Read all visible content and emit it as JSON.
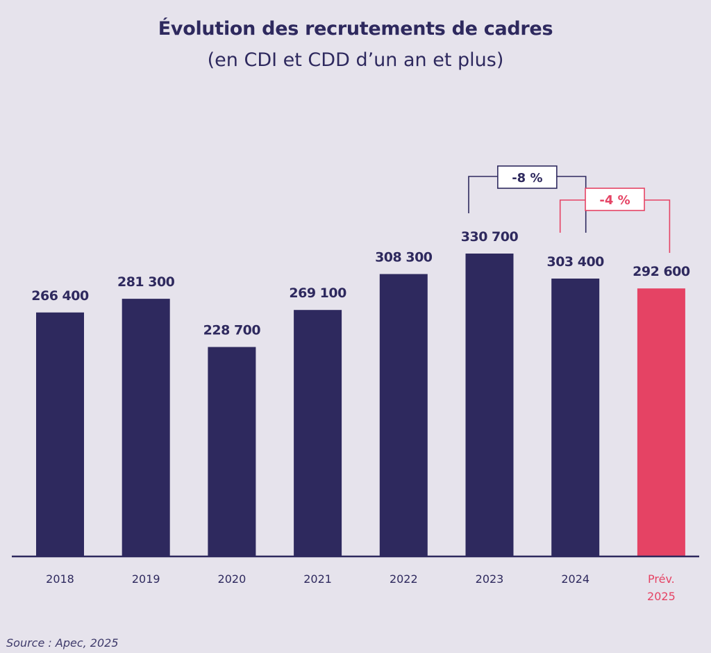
{
  "title": "Évolution des recrutements de cadres",
  "subtitle": "(en CDI et CDD d’un an et plus)",
  "source": "Source : Apec, 2025",
  "colors": {
    "background": "#E6E3EC",
    "primary": "#2E295E",
    "forecast": "#E54364",
    "box_fill": "#FFFFFF"
  },
  "chart_data": {
    "type": "bar",
    "title": "Évolution des recrutements de cadres",
    "subtitle": "(en CDI et CDD d’un an et plus)",
    "xlabel": "",
    "ylabel": "",
    "ylim": [
      0,
      330700
    ],
    "grid": false,
    "legend": "none",
    "categories": [
      "2018",
      "2019",
      "2020",
      "2021",
      "2022",
      "2023",
      "2024",
      "Prév. 2025"
    ],
    "category_lines": [
      [
        "2018"
      ],
      [
        "2019"
      ],
      [
        "2020"
      ],
      [
        "2021"
      ],
      [
        "2022"
      ],
      [
        "2023"
      ],
      [
        "2024"
      ],
      [
        "Prév.",
        "2025"
      ]
    ],
    "values": [
      266400,
      281300,
      228700,
      269100,
      308300,
      330700,
      303400,
      292600
    ],
    "value_labels": [
      "266 400",
      "281 300",
      "228 700",
      "269 100",
      "308 300",
      "330 700",
      "303 400",
      "292 600"
    ],
    "forecast": [
      false,
      false,
      false,
      false,
      false,
      false,
      false,
      true
    ],
    "annotations": [
      {
        "label": "-8 %",
        "from": "2023",
        "to": "2024",
        "style": "primary"
      },
      {
        "label": "-4 %",
        "from": "2024",
        "to": "Prév. 2025",
        "style": "forecast"
      }
    ]
  }
}
